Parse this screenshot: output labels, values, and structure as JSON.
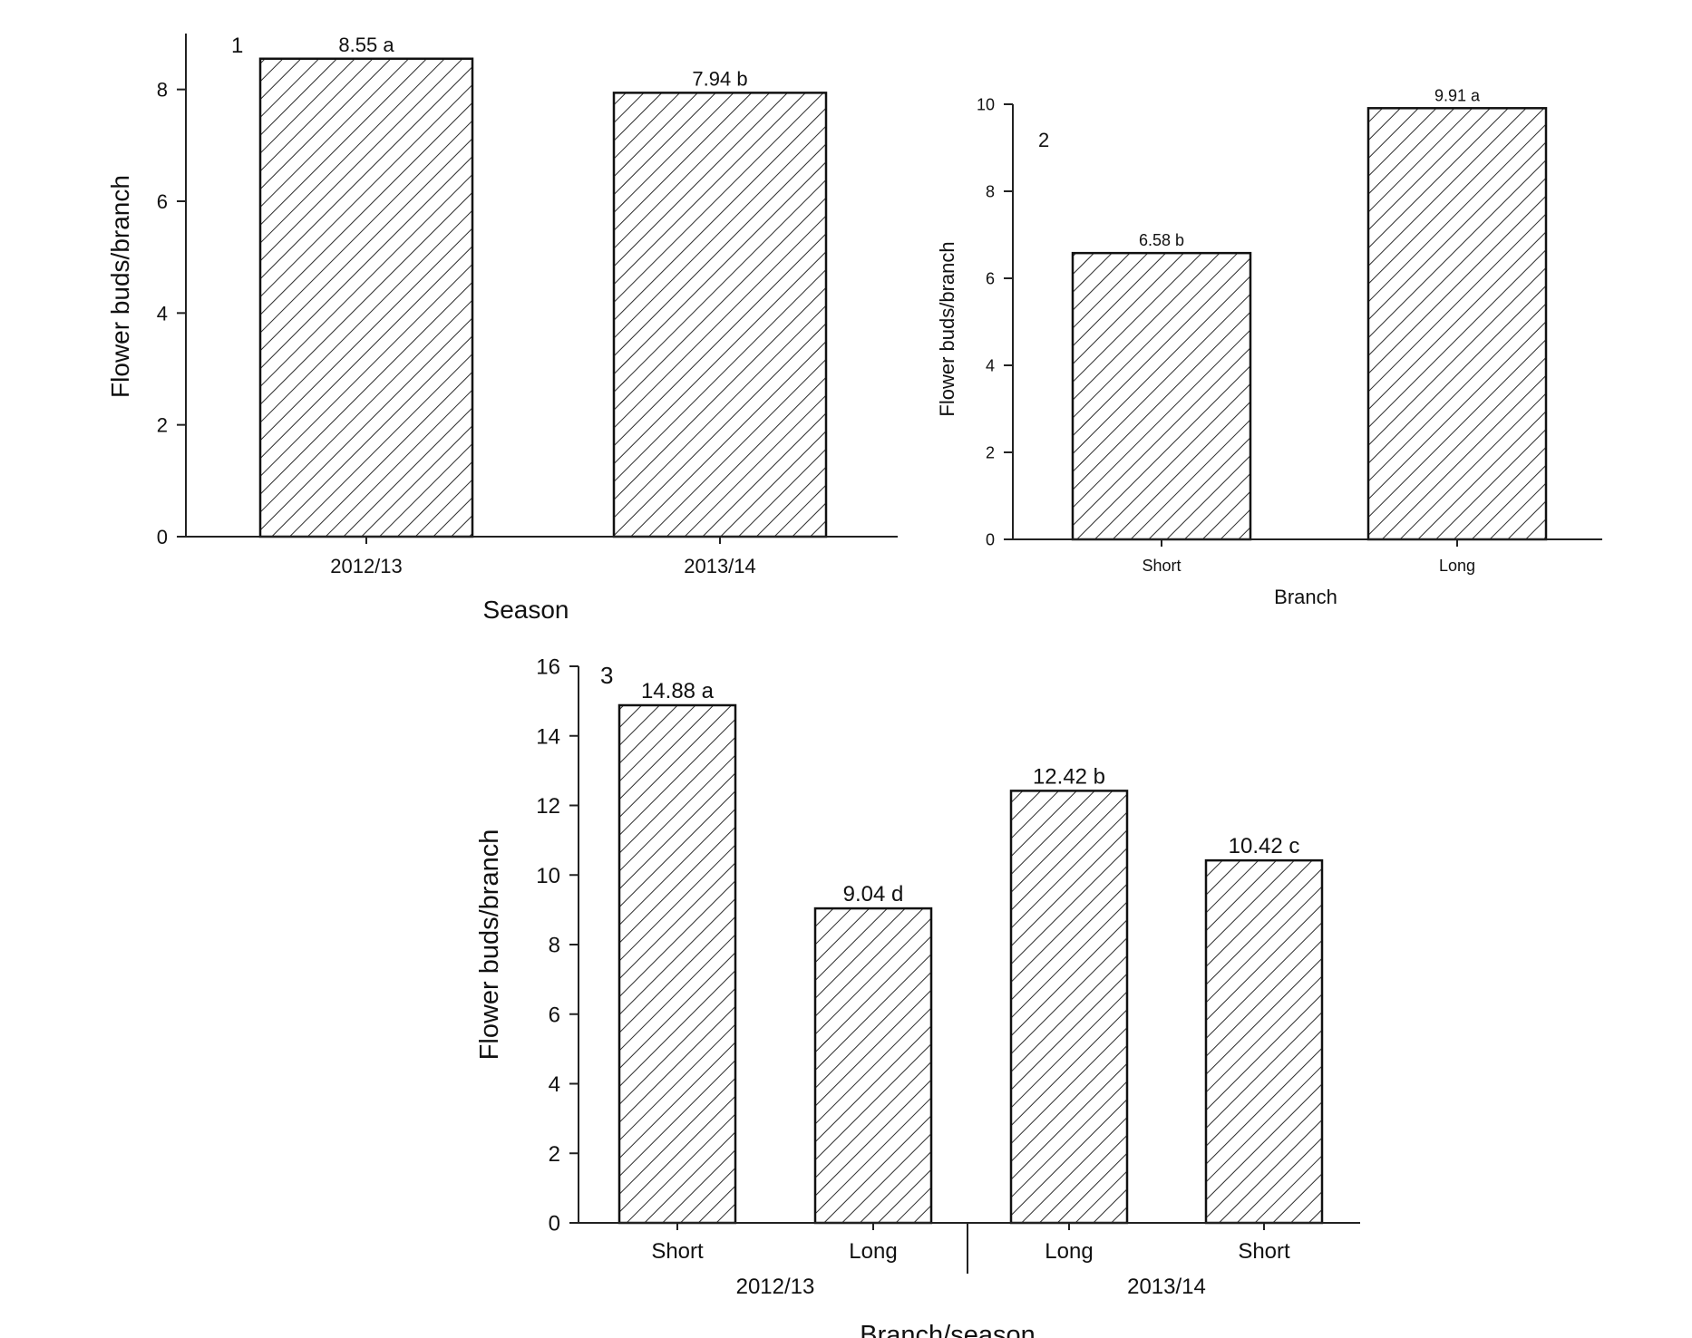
{
  "chart_data": [
    {
      "type": "bar",
      "panel_number": "1",
      "categories": [
        "2012/13",
        "2013/14"
      ],
      "values": [
        8.55,
        7.94
      ],
      "data_labels": [
        "8.55 a",
        "7.94 b"
      ],
      "xlabel": "Season",
      "ylabel": "Flower buds/branch",
      "ylim": [
        0,
        9
      ],
      "yticks": [
        0,
        2,
        4,
        6,
        8
      ],
      "grid": false,
      "pattern": "diagonal-hatch"
    },
    {
      "type": "bar",
      "panel_number": "2",
      "categories": [
        "Short",
        "Long"
      ],
      "values": [
        6.58,
        9.91
      ],
      "data_labels": [
        "6.58 b",
        "9.91 a"
      ],
      "xlabel": "Branch",
      "ylabel": "Flower buds/branch",
      "ylim": [
        0,
        10
      ],
      "yticks": [
        0,
        2,
        4,
        6,
        8,
        10
      ],
      "grid": false,
      "pattern": "diagonal-hatch"
    },
    {
      "type": "bar",
      "panel_number": "3",
      "categories": [
        "Short",
        "Long",
        "Long",
        "Short"
      ],
      "groups": [
        {
          "label": "2012/13",
          "count": 2
        },
        {
          "label": "2013/14",
          "count": 2
        }
      ],
      "values": [
        14.88,
        9.04,
        12.42,
        10.42
      ],
      "data_labels": [
        "14.88 a",
        "9.04 d",
        "12.42 b",
        "10.42 c"
      ],
      "xlabel": "Branch/season",
      "ylabel": "Flower buds/branch",
      "ylim": [
        0,
        16
      ],
      "yticks": [
        0,
        2,
        4,
        6,
        8,
        10,
        12,
        14,
        16
      ],
      "grid": false,
      "pattern": "diagonal-hatch"
    }
  ],
  "colors": {
    "bar_fill": "#ffffff",
    "hatch": "#2b2b2b",
    "axis": "#222222",
    "text": "#111111"
  }
}
